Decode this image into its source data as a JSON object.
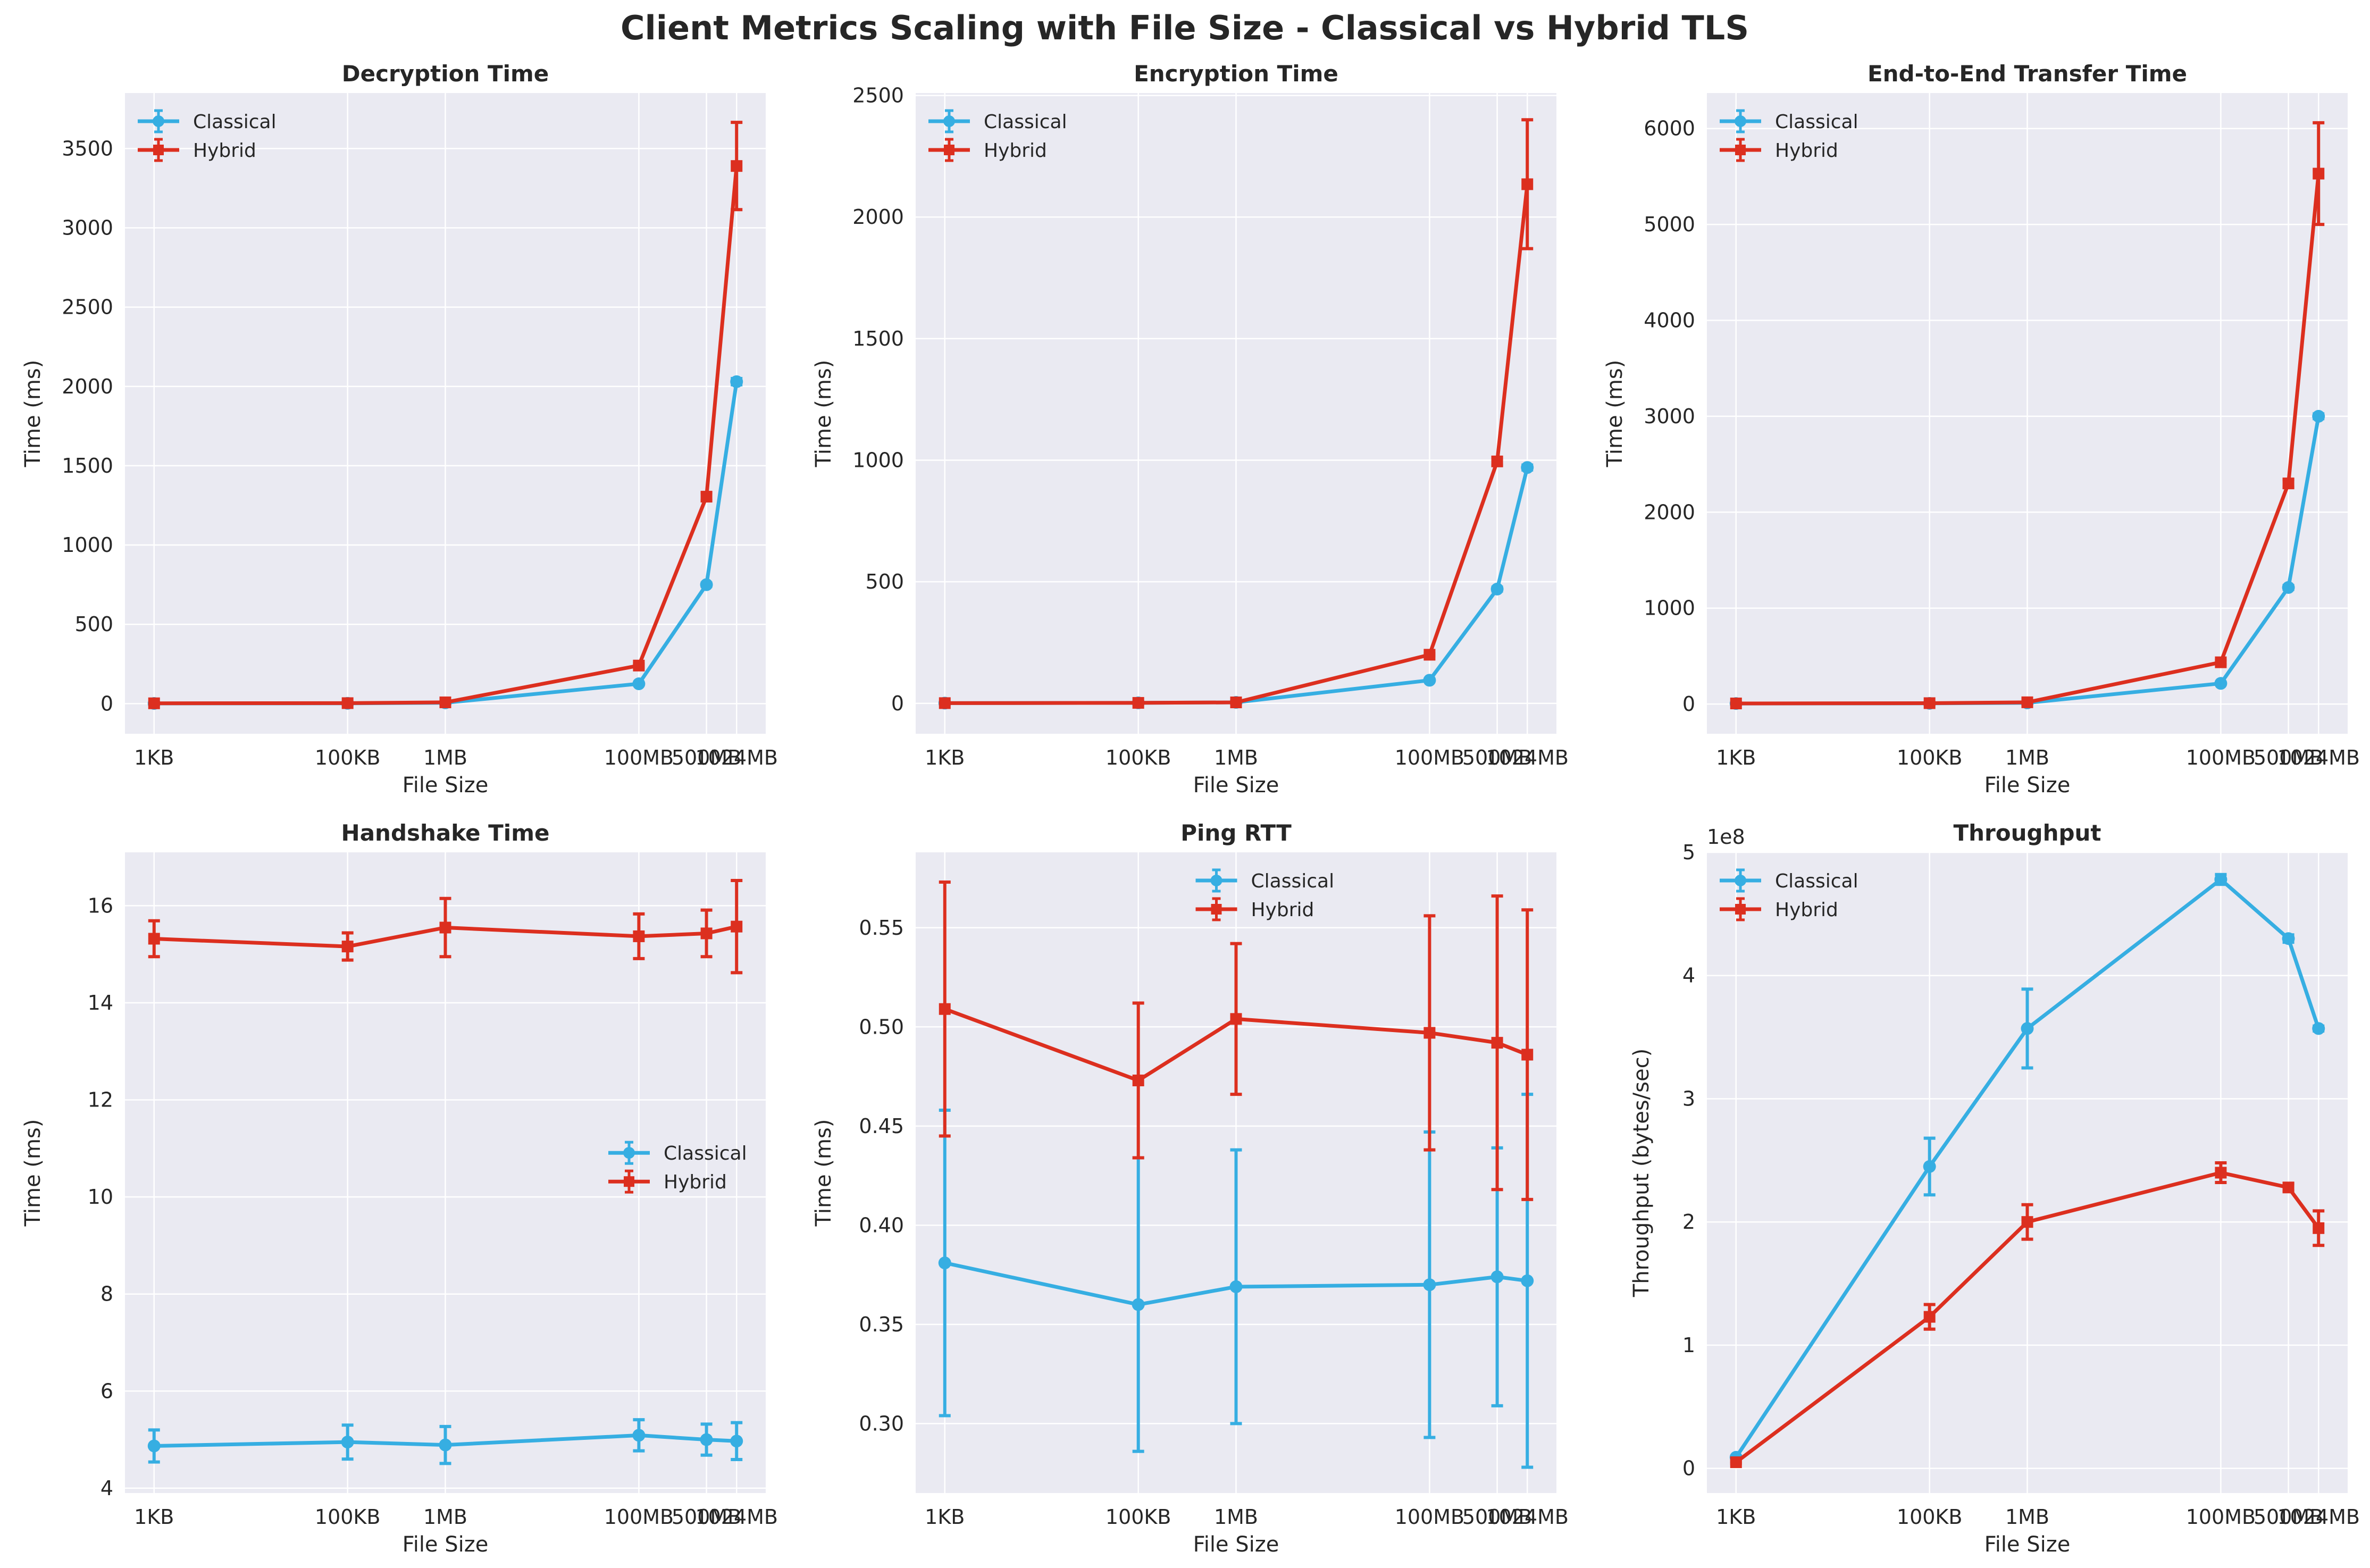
{
  "figure": {
    "title": "Client Metrics Scaling with File Size - Classical vs Hybrid TLS"
  },
  "colors": {
    "classical": "#36aee2",
    "hybrid": "#dc2f1f",
    "panel_bg": "#eaeaf2",
    "grid": "#ffffff"
  },
  "chart_data": [
    {
      "type": "line",
      "title": "Decryption Time",
      "xlabel": "File Size",
      "ylabel": "Time (ms)",
      "x_scale": "log",
      "categories": [
        "1KB",
        "100KB",
        "1MB",
        "100MB",
        "500MB",
        "1024MB"
      ],
      "x_bytes": [
        1024,
        102400,
        1048576,
        104857600,
        524288000,
        1073741824
      ],
      "ylim": [
        -190,
        3850
      ],
      "yticks": [
        0,
        500,
        1000,
        1500,
        2000,
        2500,
        3000,
        3500
      ],
      "ytick_labels": [
        "0",
        "500",
        "1000",
        "1500",
        "2000",
        "2500",
        "3000",
        "3500"
      ],
      "legend": "top-left",
      "series": [
        {
          "name": "Classical",
          "marker": "circle",
          "values": [
            1,
            2,
            5,
            125,
            750,
            2030
          ],
          "errors": [
            0,
            0,
            0,
            5,
            10,
            20
          ]
        },
        {
          "name": "Hybrid",
          "marker": "square",
          "values": [
            2,
            3,
            8,
            240,
            1305,
            3390
          ],
          "errors": [
            0,
            0,
            0,
            10,
            25,
            275
          ]
        }
      ]
    },
    {
      "type": "line",
      "title": "Encryption Time",
      "xlabel": "File Size",
      "ylabel": "Time (ms)",
      "x_scale": "log",
      "categories": [
        "1KB",
        "100KB",
        "1MB",
        "100MB",
        "500MB",
        "1024MB"
      ],
      "x_bytes": [
        1024,
        102400,
        1048576,
        104857600,
        524288000,
        1073741824
      ],
      "ylim": [
        -125,
        2510
      ],
      "yticks": [
        0,
        500,
        1000,
        1500,
        2000,
        2500
      ],
      "ytick_labels": [
        "0",
        "500",
        "1000",
        "1500",
        "2000",
        "2500"
      ],
      "legend": "top-left",
      "series": [
        {
          "name": "Classical",
          "marker": "circle",
          "values": [
            1,
            2,
            4,
            95,
            470,
            970
          ],
          "errors": [
            0,
            0,
            0,
            3,
            8,
            10
          ]
        },
        {
          "name": "Hybrid",
          "marker": "square",
          "values": [
            1,
            2,
            4,
            200,
            995,
            2135
          ],
          "errors": [
            0,
            0,
            0,
            5,
            15,
            265
          ]
        }
      ]
    },
    {
      "type": "line",
      "title": "End-to-End Transfer Time",
      "xlabel": "File Size",
      "ylabel": "Time (ms)",
      "x_scale": "log",
      "categories": [
        "1KB",
        "100KB",
        "1MB",
        "100MB",
        "500MB",
        "1024MB"
      ],
      "x_bytes": [
        1024,
        102400,
        1048576,
        104857600,
        524288000,
        1073741824
      ],
      "ylim": [
        -310,
        6370
      ],
      "yticks": [
        0,
        1000,
        2000,
        3000,
        4000,
        5000,
        6000
      ],
      "ytick_labels": [
        "0",
        "1000",
        "2000",
        "3000",
        "4000",
        "5000",
        "6000"
      ],
      "legend": "top-left",
      "series": [
        {
          "name": "Classical",
          "marker": "circle",
          "values": [
            5,
            7,
            12,
            215,
            1215,
            3000
          ],
          "errors": [
            0,
            0,
            0,
            10,
            20,
            25
          ]
        },
        {
          "name": "Hybrid",
          "marker": "square",
          "values": [
            6,
            9,
            18,
            435,
            2300,
            5530
          ],
          "errors": [
            0,
            0,
            0,
            20,
            40,
            530
          ]
        }
      ]
    },
    {
      "type": "line",
      "title": "Handshake Time",
      "xlabel": "File Size",
      "ylabel": "Time (ms)",
      "x_scale": "log",
      "categories": [
        "1KB",
        "100KB",
        "1MB",
        "100MB",
        "500MB",
        "1024MB"
      ],
      "x_bytes": [
        1024,
        102400,
        1048576,
        104857600,
        524288000,
        1073741824
      ],
      "ylim": [
        3.9,
        17.1
      ],
      "yticks": [
        4,
        6,
        8,
        10,
        12,
        14,
        16
      ],
      "ytick_labels": [
        "4",
        "6",
        "8",
        "10",
        "12",
        "14",
        "16"
      ],
      "legend": "center-right",
      "series": [
        {
          "name": "Classical",
          "marker": "circle",
          "values": [
            4.87,
            4.95,
            4.89,
            5.09,
            5.0,
            4.97
          ],
          "errors": [
            0.33,
            0.35,
            0.38,
            0.32,
            0.32,
            0.38
          ]
        },
        {
          "name": "Hybrid",
          "marker": "square",
          "values": [
            15.32,
            15.16,
            15.55,
            15.37,
            15.43,
            15.57
          ],
          "errors": [
            0.37,
            0.28,
            0.6,
            0.46,
            0.48,
            0.95
          ]
        }
      ]
    },
    {
      "type": "line",
      "title": "Ping RTT",
      "xlabel": "File Size",
      "ylabel": "Time (ms)",
      "x_scale": "log",
      "categories": [
        "1KB",
        "100KB",
        "1MB",
        "100MB",
        "500MB",
        "1024MB"
      ],
      "x_bytes": [
        1024,
        102400,
        1048576,
        104857600,
        524288000,
        1073741824
      ],
      "ylim": [
        0.265,
        0.588
      ],
      "yticks": [
        0.3,
        0.35,
        0.4,
        0.45,
        0.5,
        0.55
      ],
      "ytick_labels": [
        "0.30",
        "0.35",
        "0.40",
        "0.45",
        "0.50",
        "0.55"
      ],
      "legend": "top-center",
      "series": [
        {
          "name": "Classical",
          "marker": "circle",
          "values": [
            0.381,
            0.36,
            0.369,
            0.37,
            0.374,
            0.372
          ],
          "errors": [
            0.077,
            0.074,
            0.069,
            0.077,
            0.065,
            0.094
          ]
        },
        {
          "name": "Hybrid",
          "marker": "square",
          "values": [
            0.509,
            0.473,
            0.504,
            0.497,
            0.492,
            0.486
          ],
          "errors": [
            0.064,
            0.039,
            0.038,
            0.059,
            0.074,
            0.073
          ]
        }
      ]
    },
    {
      "type": "line",
      "title": "Throughput",
      "xlabel": "File Size",
      "ylabel": "Throughput (bytes/sec)",
      "y_offset_label": "1e8",
      "x_scale": "log",
      "categories": [
        "1KB",
        "100KB",
        "1MB",
        "100MB",
        "500MB",
        "1024MB"
      ],
      "x_bytes": [
        1024,
        102400,
        1048576,
        104857600,
        524288000,
        1073741824
      ],
      "ylim": [
        -0.2,
        5.0
      ],
      "yticks": [
        0,
        1,
        2,
        3,
        4,
        5
      ],
      "ytick_labels": [
        "0",
        "1",
        "2",
        "3",
        "4",
        "5"
      ],
      "legend": "top-left",
      "series": [
        {
          "name": "Classical",
          "marker": "circle",
          "values": [
            0.09,
            2.45,
            3.57,
            4.78,
            4.3,
            3.57
          ],
          "errors": [
            0.01,
            0.23,
            0.32,
            0.04,
            0.03,
            0.02
          ]
        },
        {
          "name": "Hybrid",
          "marker": "square",
          "values": [
            0.05,
            1.23,
            2.0,
            2.4,
            2.28,
            1.95
          ],
          "errors": [
            0.01,
            0.1,
            0.14,
            0.08,
            0.03,
            0.14
          ]
        }
      ]
    }
  ]
}
